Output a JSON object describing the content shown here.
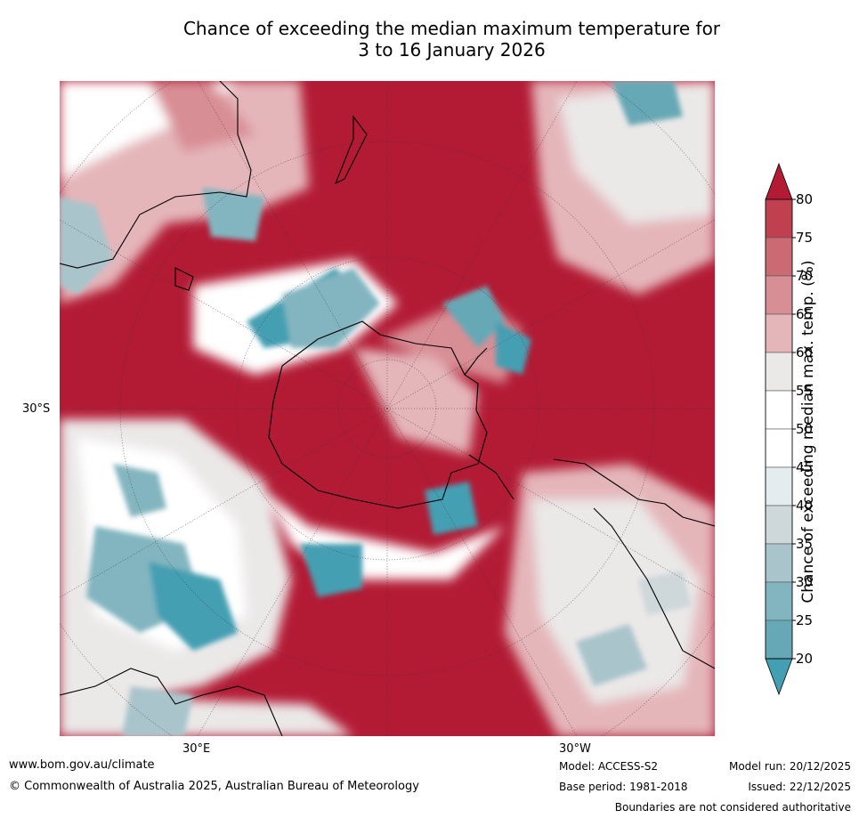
{
  "title": {
    "line1": "Chance of exceeding the median maximum temperature for",
    "line2": "3 to 16 January 2026"
  },
  "map": {
    "lat_label": "30°S",
    "lon_labels": [
      "30°E",
      "30°W"
    ],
    "colors": {
      "deep_red": "#b31b35",
      "red2": "#c0404f",
      "red3": "#cb6a73",
      "red4": "#d88e95",
      "red5": "#e4b6ba",
      "grey_light": "#ebe8e8",
      "white": "#ffffff",
      "blue1": "#e5ecef",
      "blue2": "#ced7da",
      "blue3": "#a9c5cb",
      "blue4": "#82b5c0",
      "blue5": "#66a8b5",
      "blue6": "#459fb2"
    }
  },
  "colorbar": {
    "title": "Chance of exceeding median max. temp. (%)",
    "ticks": [
      "80",
      "75",
      "70",
      "65",
      "60",
      "55",
      "50",
      "45",
      "40",
      "35",
      "30",
      "25",
      "20"
    ],
    "bands": [
      "#c0404f",
      "#cb6a73",
      "#d88e95",
      "#e4b6ba",
      "#ebe8e8",
      "#ffffff",
      "#ffffff",
      "#e5ecef",
      "#ced7da",
      "#a9c5cb",
      "#82b5c0",
      "#66a8b5"
    ],
    "top_color": "#b31b35",
    "bottom_color": "#459fb2"
  },
  "footer": {
    "website": "www.bom.gov.au/climate",
    "copyright": "© Commonwealth of Australia 2025, Australian Bureau of Meteorology",
    "model": "Model: ACCESS-S2",
    "base_period": "Base period: 1981-2018",
    "model_run": "Model run: 20/12/2025",
    "issued": "Issued: 22/12/2025",
    "disclaimer": "Boundaries are not considered authoritative"
  }
}
